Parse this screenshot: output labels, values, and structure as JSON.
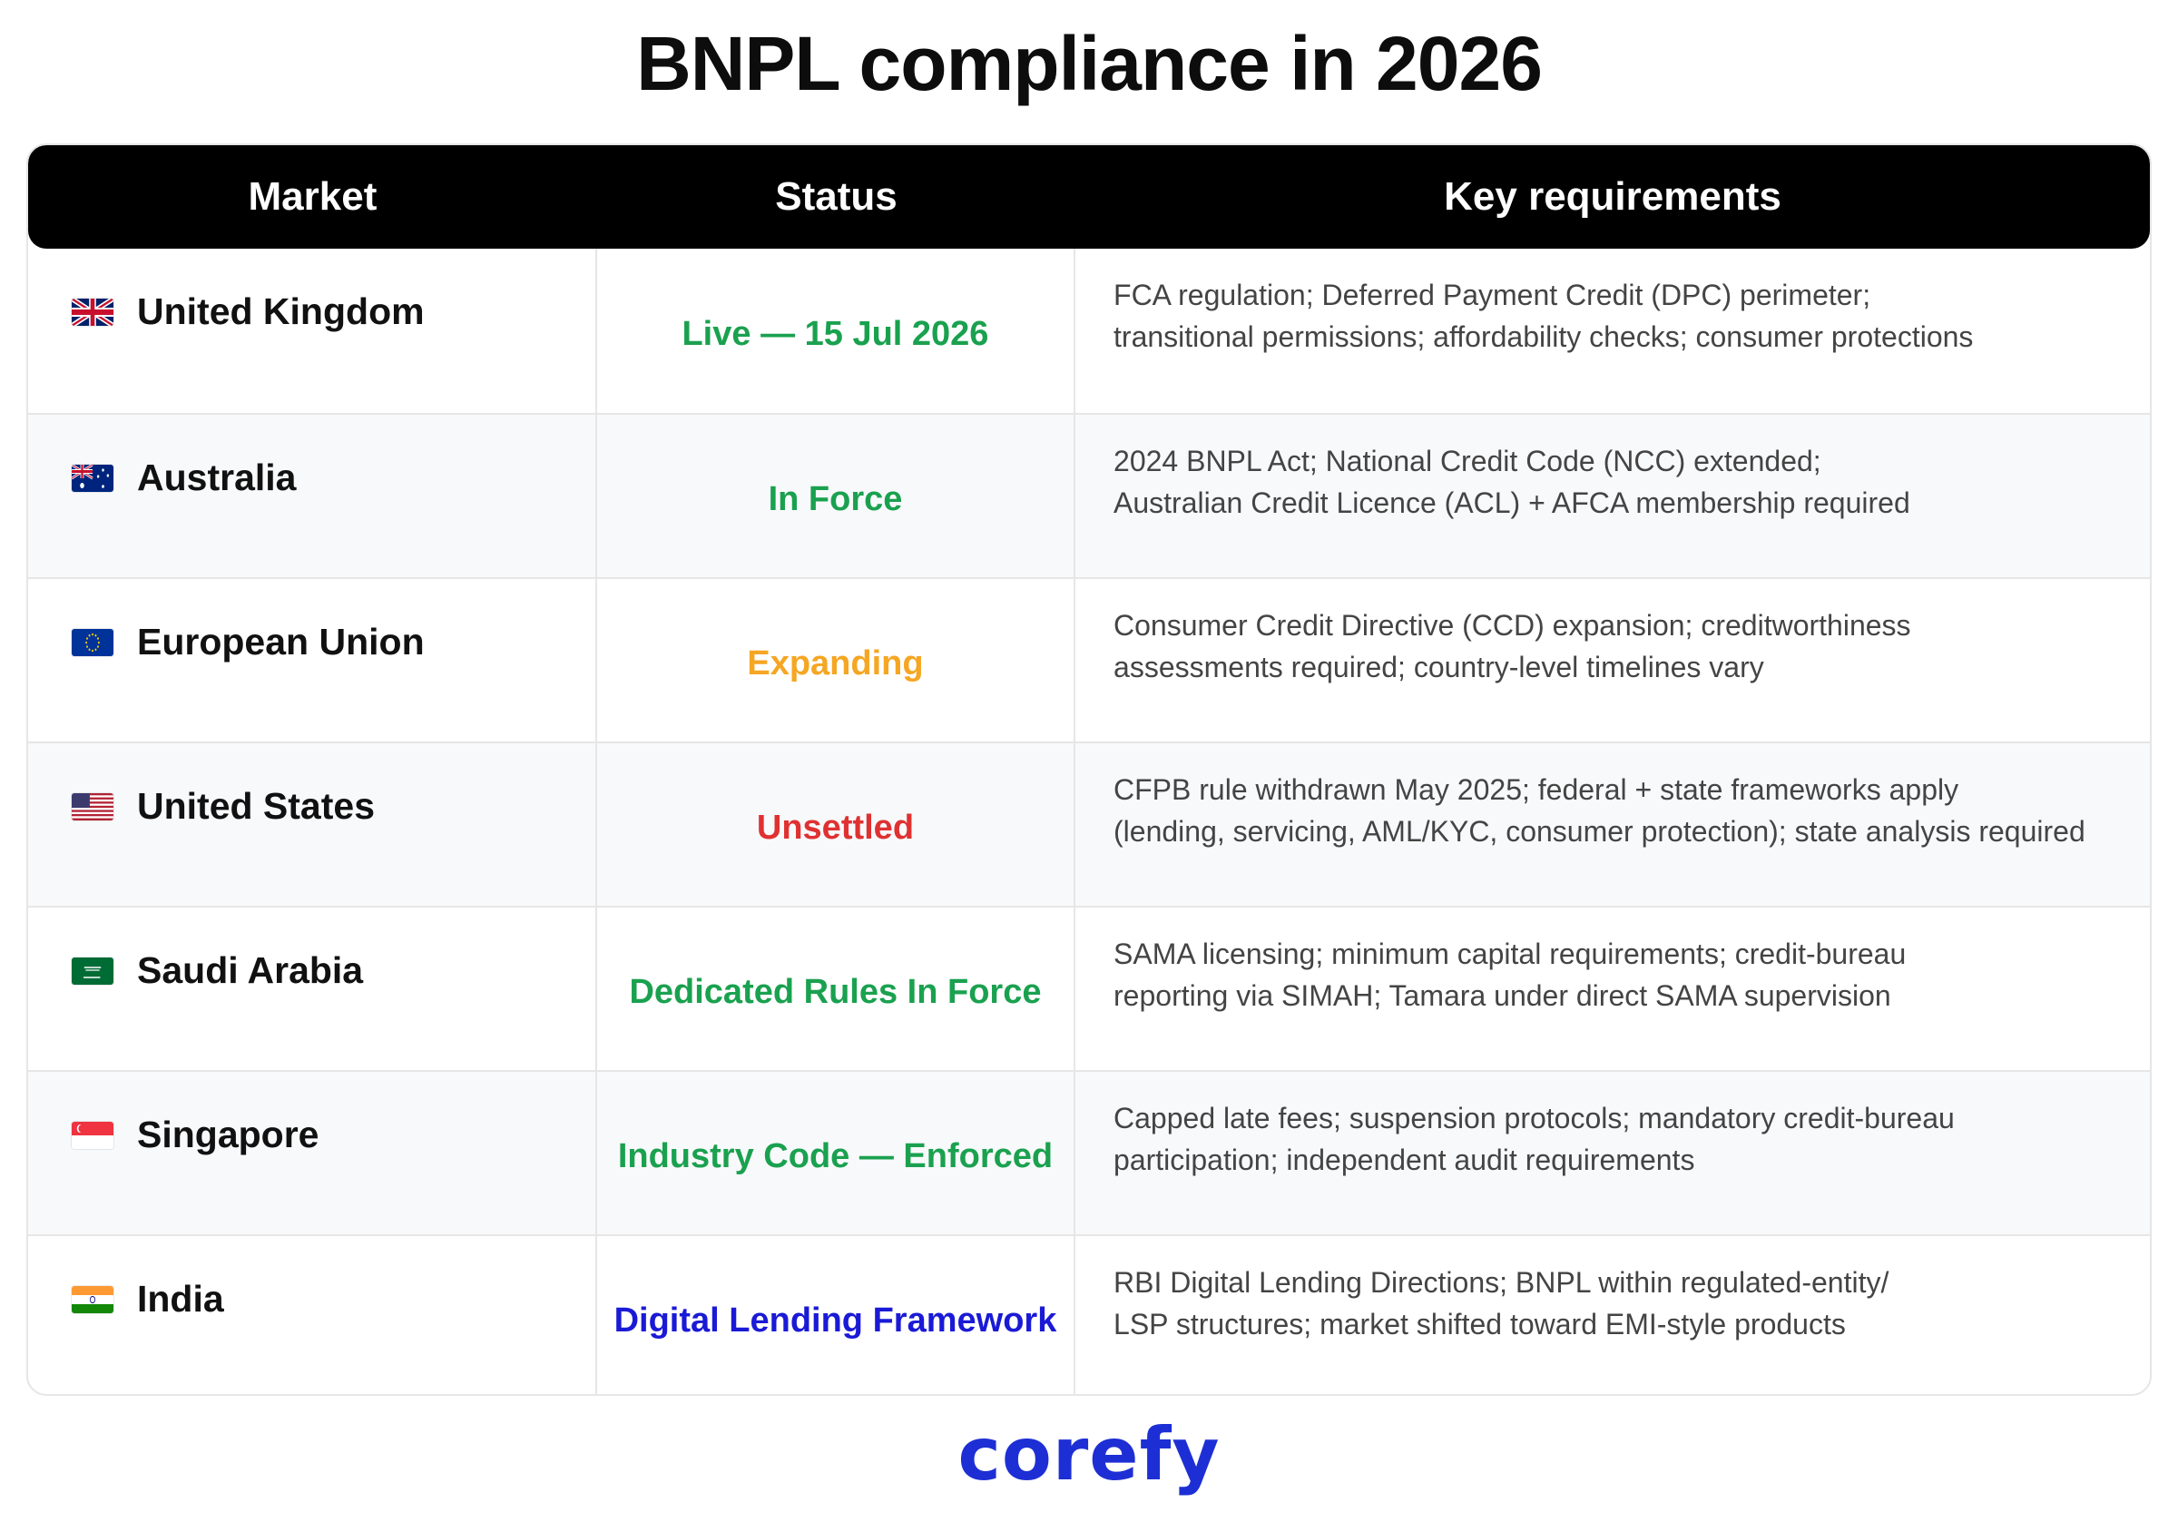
{
  "title": "BNPL compliance in 2026",
  "colors": {
    "green": "#1aa14f",
    "amber": "#f5a623",
    "red": "#e03131",
    "blue": "#1a1ad6",
    "header_bg": "#000000",
    "logo": "#1d2fd4"
  },
  "table": {
    "headers": {
      "market": "Market",
      "status": "Status",
      "requirements": "Key requirements"
    },
    "rows": [
      {
        "flag_icon": "uk-flag-icon",
        "market": "United Kingdom",
        "status": "Live — 15 Jul 2026",
        "status_color": "#1aa14f",
        "requirements": [
          "FCA regulation; Deferred Payment Credit (DPC) perimeter;",
          "transitional permissions; affordability checks; consumer protections"
        ]
      },
      {
        "flag_icon": "australia-flag-icon",
        "market": "Australia",
        "status": "In Force",
        "status_color": "#1aa14f",
        "requirements": [
          "2024 BNPL Act; National Credit Code (NCC) extended;",
          "Australian Credit Licence (ACL) + AFCA membership required"
        ]
      },
      {
        "flag_icon": "eu-flag-icon",
        "market": "European Union",
        "status": "Expanding",
        "status_color": "#f5a623",
        "requirements": [
          "Consumer Credit Directive (CCD) expansion; creditworthiness",
          "assessments required; country-level timelines vary"
        ]
      },
      {
        "flag_icon": "us-flag-icon",
        "market": "United States",
        "status": "Unsettled",
        "status_color": "#e03131",
        "requirements": [
          "CFPB rule withdrawn May 2025; federal + state frameworks apply",
          "(lending, servicing, AML/KYC, consumer protection); state analysis required"
        ]
      },
      {
        "flag_icon": "saudi-flag-icon",
        "market": "Saudi Arabia",
        "status": "Dedicated Rules In Force",
        "status_color": "#1aa14f",
        "requirements": [
          "SAMA licensing; minimum capital requirements; credit-bureau",
          "reporting via SIMAH; Tamara under direct SAMA supervision"
        ]
      },
      {
        "flag_icon": "singapore-flag-icon",
        "market": "Singapore",
        "status": "Industry Code — Enforced",
        "status_color": "#1aa14f",
        "requirements": [
          "Capped late fees; suspension protocols; mandatory credit-bureau",
          "participation; independent audit requirements"
        ]
      },
      {
        "flag_icon": "india-flag-icon",
        "market": "India",
        "status": "Digital Lending Framework",
        "status_color": "#1a1ad6",
        "requirements": [
          "RBI Digital Lending Directions; BNPL within regulated-entity/",
          "LSP structures; market shifted toward EMI-style products"
        ]
      }
    ]
  },
  "logo": "corefy"
}
